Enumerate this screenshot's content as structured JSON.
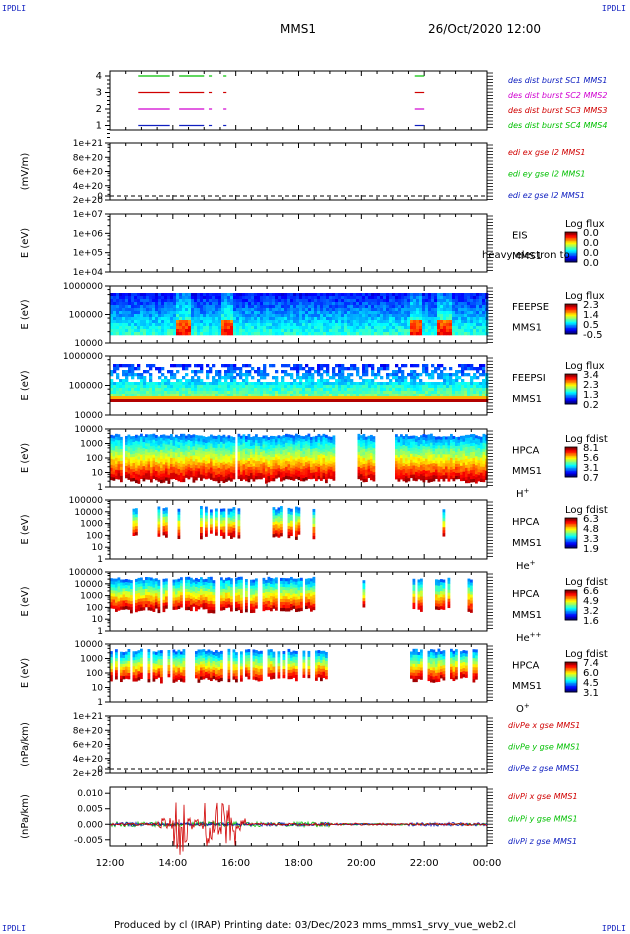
{
  "header": {
    "spacecraft": "MMS1",
    "datetime": "26/Oct/2020 12:00"
  },
  "corner_label": "IPDLI",
  "footer": {
    "text": "Produced by cl (IRAP)   Printing date: 03/Dec/2023   mms_mms1_srvy_vue_web2.cl"
  },
  "colors": {
    "mms1": "#1020c0",
    "mms2": "#d000d0",
    "mms3": "#d00000",
    "mms4": "#00c000",
    "x": "#d00000",
    "y": "#00c000",
    "z": "#1020c0"
  },
  "chart_data": [
    {
      "type": "line",
      "id": "burst",
      "ylabels": [
        "4",
        "3",
        "2",
        "1"
      ],
      "legend": [
        "des dist burst SC1 MMS1",
        "des dist burst SC2 MMS2",
        "des dist burst SC3 MMS3",
        "des dist burst SC4 MMS4"
      ],
      "intervals": [
        [
          12.9,
          13.9
        ],
        [
          14.2,
          15.0
        ],
        [
          15.15,
          15.25
        ],
        [
          15.6,
          15.7
        ],
        [
          21.7,
          22.0
        ]
      ]
    },
    {
      "type": "line",
      "id": "edp",
      "ylabel": "(mV/m)",
      "yticks": [
        "1e+21",
        "8e+20",
        "6e+20",
        "4e+20",
        "2e+20",
        "0"
      ],
      "legend": [
        "edi ex gse l2 MMS1",
        "edi ey gse l2 MMS1",
        "edi ez gse l2 MMS1"
      ]
    },
    {
      "type": "heatmap",
      "id": "eis",
      "ylabel": "E (eV)",
      "yticks": [
        "1e+07",
        "1e+06",
        "1e+05",
        "1e+04"
      ],
      "labels": [
        "EIS",
        "MMS1"
      ],
      "overlay_text": "heavy electron to",
      "colorbar_title": "Log flux",
      "colorbar_ticks": [
        "0.0",
        "0.0",
        "0.0",
        "0.0"
      ]
    },
    {
      "type": "heatmap",
      "id": "feeps_e",
      "ylabel": "E (eV)",
      "yticks": [
        "1000000",
        "100000",
        "10000"
      ],
      "labels": [
        "FEEPSE",
        "MMS1"
      ],
      "colorbar_title": "Log flux",
      "colorbar_ticks": [
        "2.3",
        "1.4",
        "0.5",
        "-0.5"
      ]
    },
    {
      "type": "heatmap",
      "id": "feeps_i",
      "ylabel": "E (eV)",
      "yticks": [
        "1000000",
        "100000",
        "10000"
      ],
      "labels": [
        "FEEPSI",
        "MMS1"
      ],
      "colorbar_title": "Log flux",
      "colorbar_ticks": [
        "3.4",
        "2.3",
        "1.3",
        "0.2"
      ]
    },
    {
      "type": "heatmap",
      "id": "hpca_h",
      "ylabel": "E (eV)",
      "yticks": [
        "10000",
        "1000",
        "100",
        "10",
        "1"
      ],
      "labels": [
        "HPCA",
        "MMS1"
      ],
      "species": "H",
      "charge": "+",
      "colorbar_title": "Log fdist",
      "colorbar_ticks": [
        "8.1",
        "5.6",
        "3.1",
        "0.7"
      ]
    },
    {
      "type": "heatmap",
      "id": "hpca_he1",
      "ylabel": "E (eV)",
      "yticks": [
        "100000",
        "10000",
        "1000",
        "100",
        "10",
        "1"
      ],
      "labels": [
        "HPCA",
        "MMS1"
      ],
      "species": "He",
      "charge": "+",
      "colorbar_title": "Log fdist",
      "colorbar_ticks": [
        "6.3",
        "4.8",
        "3.3",
        "1.9"
      ]
    },
    {
      "type": "heatmap",
      "id": "hpca_he2",
      "ylabel": "E (eV)",
      "yticks": [
        "100000",
        "10000",
        "1000",
        "100",
        "10",
        "1"
      ],
      "labels": [
        "HPCA",
        "MMS1"
      ],
      "species": "He",
      "charge": "++",
      "colorbar_title": "Log fdist",
      "colorbar_ticks": [
        "6.6",
        "4.9",
        "3.2",
        "1.6"
      ]
    },
    {
      "type": "heatmap",
      "id": "hpca_o",
      "ylabel": "E (eV)",
      "yticks": [
        "10000",
        "1000",
        "100",
        "10",
        "1"
      ],
      "labels": [
        "HPCA",
        "MMS1"
      ],
      "species": "O",
      "charge": "+",
      "colorbar_title": "Log fdist",
      "colorbar_ticks": [
        "7.4",
        "6.0",
        "4.5",
        "3.1"
      ]
    },
    {
      "type": "line",
      "id": "divpe",
      "ylabel": "(nPa/km)",
      "yticks": [
        "1e+21",
        "8e+20",
        "6e+20",
        "4e+20",
        "2e+20",
        "0"
      ],
      "legend": [
        "divPe x gse MMS1",
        "divPe y gse MMS1",
        "divPe z gse MMS1"
      ]
    },
    {
      "type": "line",
      "id": "divpi",
      "ylabel": "(nPa/km)",
      "yticks": [
        "0.010",
        "0.005",
        "0.000",
        "-0.005"
      ],
      "ylim": [
        -0.007,
        0.012
      ],
      "legend": [
        "divPi x gse MMS1",
        "divPi y gse MMS1",
        "divPi z gse MMS1"
      ]
    }
  ],
  "x_axis": {
    "range": [
      12,
      24
    ],
    "ticks": [
      12,
      14,
      16,
      18,
      20,
      22,
      24
    ],
    "tick_labels": [
      "12:00",
      "14:00",
      "16:00",
      "18:00",
      "20:00",
      "22:00",
      "00:00"
    ]
  }
}
